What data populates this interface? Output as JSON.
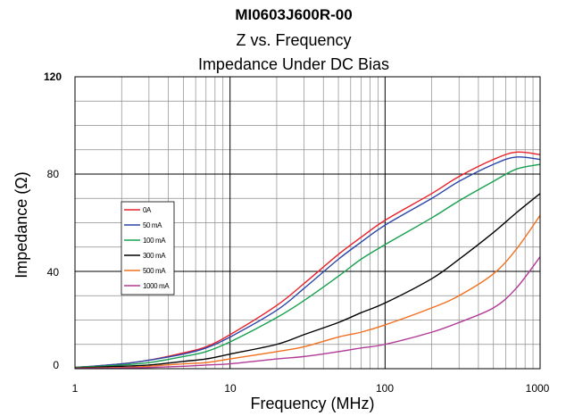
{
  "chart_data": {
    "type": "line",
    "title": "MI0603J600R-00",
    "subtitle": [
      "Z vs. Frequency",
      "Impedance Under DC Bias"
    ],
    "xlabel": "Frequency (MHz)",
    "ylabel": "Impedance (Ω)",
    "xscale": "log",
    "xlim": [
      1,
      1000
    ],
    "ylim": [
      0,
      120
    ],
    "x_tick_labels": [
      "1",
      "10",
      "100",
      "1000"
    ],
    "y_tick_labels": [
      "0",
      "40",
      "80",
      "120"
    ],
    "grid": true,
    "legend_position": "left",
    "x": [
      1,
      2,
      3,
      5,
      7,
      10,
      20,
      30,
      50,
      70,
      100,
      200,
      300,
      500,
      700,
      1000
    ],
    "series": [
      {
        "name": "0A",
        "color": "#e8202a",
        "values": [
          0.5,
          2,
          3.5,
          6.5,
          9,
          14,
          26,
          35,
          47,
          54,
          61,
          72,
          79,
          86,
          89,
          88
        ]
      },
      {
        "name": "50 mA",
        "color": "#2b46a8",
        "values": [
          0.5,
          2,
          3.5,
          6,
          8.5,
          13,
          24,
          33,
          45,
          52,
          59,
          70,
          77,
          84,
          87,
          86
        ]
      },
      {
        "name": "100 mA",
        "color": "#18a050",
        "values": [
          0.5,
          1.5,
          2.5,
          5,
          7,
          11,
          21,
          28,
          38,
          45,
          51,
          62,
          69,
          77,
          82,
          84
        ]
      },
      {
        "name": "300 mA",
        "color": "#000000",
        "values": [
          0.3,
          1,
          1.5,
          3,
          4,
          6,
          10,
          14,
          19,
          23,
          27,
          37,
          45,
          56,
          64,
          72
        ]
      },
      {
        "name": "500 mA",
        "color": "#f07020",
        "values": [
          0.2,
          0.5,
          1,
          2,
          2.5,
          4,
          7,
          9,
          13,
          15,
          18,
          25,
          30,
          39,
          49,
          63
        ]
      },
      {
        "name": "1000 mA",
        "color": "#b03a96",
        "values": [
          0.1,
          0.3,
          0.5,
          1,
          1.5,
          2,
          4,
          5,
          7,
          8.5,
          10,
          15,
          19,
          25,
          33,
          46
        ]
      }
    ]
  }
}
